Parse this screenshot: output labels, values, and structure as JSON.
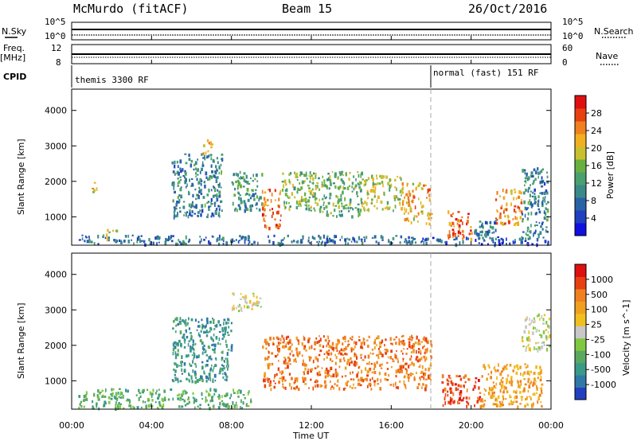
{
  "header": {
    "title": "McMurdo (fitACF)",
    "beam": "Beam 15",
    "date": "26/Oct/2016"
  },
  "top_panels": {
    "nsky_label": "N.Sky",
    "nsearch_label": "N.Search",
    "freq_label": "Freq.",
    "freq_unit": "[MHz]",
    "nave_label": "Nave",
    "cpid_label": "CPID",
    "nsky_ticks": [
      "10^5",
      "10^0"
    ],
    "nsearch_ticks": [
      "10^5",
      "10^0"
    ],
    "freq_ticks": [
      "12",
      "8"
    ],
    "nave_ticks": [
      "60",
      "0"
    ],
    "cpid_segments": [
      {
        "label": "themis 3300 RF",
        "start_hour": 0.0,
        "end_hour": 18.0
      },
      {
        "label": "normal (fast) 151 RF",
        "start_hour": 18.0,
        "end_hour": 24.0
      }
    ]
  },
  "chart_data": [
    {
      "type": "heatmap",
      "name": "power",
      "ylabel": "Slant Range [km]",
      "ylim": [
        200,
        4600
      ],
      "y_ticks": [
        "4000",
        "3000",
        "2000",
        "1000"
      ],
      "xlim_hours": [
        0,
        24
      ],
      "colorbar": {
        "label": "Power [dB]",
        "ticks": [
          "28",
          "24",
          "20",
          "16",
          "12",
          "8",
          "4"
        ],
        "range": [
          0,
          32
        ],
        "colors": [
          "#1010e0",
          "#2040c0",
          "#2a62a8",
          "#3a8a8a",
          "#4aa070",
          "#6ab040",
          "#c8c030",
          "#f0b020",
          "#f08020",
          "#e84010",
          "#e01010"
        ]
      },
      "regions": [
        {
          "t0": 0.3,
          "t1": 17.5,
          "r0": 250,
          "r1": 500,
          "value": 8
        },
        {
          "t0": 1.5,
          "t1": 2.3,
          "r0": 400,
          "r1": 700,
          "value": 18
        },
        {
          "t0": 1.0,
          "t1": 1.3,
          "r0": 1600,
          "r1": 2000,
          "value": 20
        },
        {
          "t0": 5.0,
          "t1": 7.5,
          "r0": 1000,
          "r1": 2800,
          "value": 10
        },
        {
          "t0": 6.5,
          "t1": 7.0,
          "r0": 2800,
          "r1": 3200,
          "value": 24
        },
        {
          "t0": 8.0,
          "t1": 9.5,
          "r0": 1200,
          "r1": 2300,
          "value": 12
        },
        {
          "t0": 9.5,
          "t1": 10.5,
          "r0": 700,
          "r1": 1800,
          "value": 26
        },
        {
          "t0": 10.5,
          "t1": 12.5,
          "r0": 1200,
          "r1": 2300,
          "value": 16
        },
        {
          "t0": 12.5,
          "t1": 14.5,
          "r0": 1000,
          "r1": 2300,
          "value": 14
        },
        {
          "t0": 14.5,
          "t1": 16.5,
          "r0": 1200,
          "r1": 2200,
          "value": 18
        },
        {
          "t0": 16.5,
          "t1": 18.0,
          "r0": 800,
          "r1": 2000,
          "value": 22
        },
        {
          "t0": 18.8,
          "t1": 20.0,
          "r0": 400,
          "r1": 1200,
          "value": 26
        },
        {
          "t0": 20.0,
          "t1": 21.2,
          "r0": 400,
          "r1": 1000,
          "value": 10
        },
        {
          "t0": 21.2,
          "t1": 22.5,
          "r0": 800,
          "r1": 1800,
          "value": 24
        },
        {
          "t0": 22.5,
          "t1": 23.8,
          "r0": 400,
          "r1": 2400,
          "value": 10
        },
        {
          "t0": 17.5,
          "t1": 23.9,
          "r0": 250,
          "r1": 450,
          "value": 6
        }
      ]
    },
    {
      "type": "heatmap",
      "name": "velocity",
      "ylabel": "Slant Range [km]",
      "ylim": [
        200,
        4600
      ],
      "y_ticks": [
        "4000",
        "3000",
        "2000",
        "1000"
      ],
      "xlim_hours": [
        0,
        24
      ],
      "x_ticks": [
        "00:00",
        "04:00",
        "08:00",
        "12:00",
        "16:00",
        "20:00",
        "00:00"
      ],
      "xlabel": "Time UT",
      "colorbar": {
        "label": "Velocity [m s^-1]",
        "ticks": [
          "1000",
          "500",
          "100",
          "25",
          "-25",
          "-100",
          "-500",
          "-1000"
        ],
        "colors": [
          "#2040c0",
          "#2f78a8",
          "#3a9a88",
          "#5aa860",
          "#80c840",
          "#c8c8c8",
          "#f0c020",
          "#f0a020",
          "#f08020",
          "#e84010",
          "#e01010"
        ]
      },
      "regions": [
        {
          "t0": 0.3,
          "t1": 9.0,
          "r0": 250,
          "r1": 800,
          "value": 3
        },
        {
          "t0": 5.0,
          "t1": 8.0,
          "r0": 1000,
          "r1": 2800,
          "value": 2
        },
        {
          "t0": 8.0,
          "t1": 9.5,
          "r0": 3000,
          "r1": 3500,
          "value": 5
        },
        {
          "t0": 9.5,
          "t1": 18.0,
          "r0": 800,
          "r1": 2300,
          "value": 8
        },
        {
          "t0": 18.5,
          "t1": 20.5,
          "r0": 300,
          "r1": 1200,
          "value": 9
        },
        {
          "t0": 20.5,
          "t1": 23.5,
          "r0": 300,
          "r1": 1500,
          "value": 7
        },
        {
          "t0": 22.5,
          "t1": 23.9,
          "r0": 1900,
          "r1": 2900,
          "value": 5
        }
      ]
    }
  ]
}
